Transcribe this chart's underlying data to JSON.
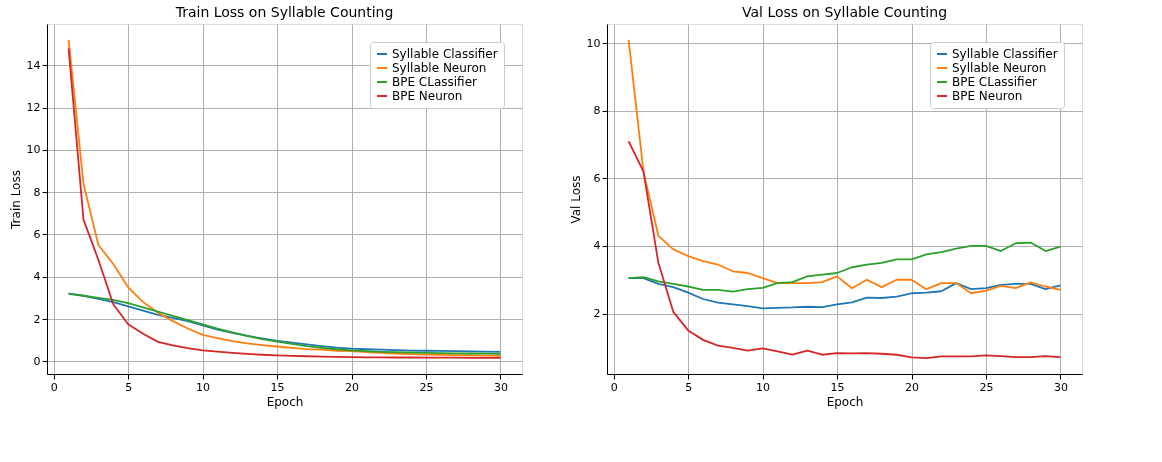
{
  "chart_data": [
    {
      "type": "line",
      "title": "Train Loss on Syllable Counting",
      "xlabel": "Epoch",
      "ylabel": "Train Loss",
      "grid": true,
      "legend": "top right",
      "marker": "none",
      "line_style": "solid",
      "x": [
        1,
        2,
        3,
        4,
        5,
        6,
        7,
        8,
        9,
        10,
        11,
        12,
        13,
        14,
        15,
        16,
        17,
        18,
        19,
        20,
        21,
        22,
        23,
        24,
        25,
        26,
        27,
        28,
        29,
        30
      ],
      "xlim": [
        -0.45,
        31.45
      ],
      "xticks": [
        0,
        5,
        10,
        15,
        20,
        25,
        30
      ],
      "ylim": [
        -0.6,
        15.95
      ],
      "yticks": [
        0,
        2,
        4,
        6,
        8,
        10,
        12,
        14
      ],
      "series": [
        {
          "name": "Syllable Classifier",
          "color": "#1f77b4",
          "values": [
            3.2,
            3.1,
            2.95,
            2.8,
            2.6,
            2.4,
            2.2,
            2.05,
            1.9,
            1.7,
            1.5,
            1.35,
            1.2,
            1.08,
            0.97,
            0.88,
            0.8,
            0.72,
            0.65,
            0.6,
            0.57,
            0.55,
            0.53,
            0.51,
            0.5,
            0.49,
            0.48,
            0.47,
            0.46,
            0.45
          ]
        },
        {
          "name": "Syllable Neuron",
          "color": "#ff7f0e",
          "values": [
            15.2,
            8.4,
            5.5,
            4.6,
            3.5,
            2.8,
            2.3,
            1.9,
            1.55,
            1.25,
            1.1,
            0.95,
            0.85,
            0.77,
            0.7,
            0.64,
            0.58,
            0.55,
            0.5,
            0.48,
            0.44,
            0.4,
            0.37,
            0.34,
            0.32,
            0.3,
            0.29,
            0.28,
            0.27,
            0.26
          ]
        },
        {
          "name": "BPE CLassifier",
          "color": "#2ca02c",
          "values": [
            3.2,
            3.1,
            3.0,
            2.9,
            2.75,
            2.55,
            2.35,
            2.15,
            1.95,
            1.75,
            1.55,
            1.37,
            1.2,
            1.05,
            0.93,
            0.82,
            0.72,
            0.64,
            0.57,
            0.52,
            0.48,
            0.45,
            0.43,
            0.41,
            0.4,
            0.39,
            0.38,
            0.37,
            0.36,
            0.35
          ]
        },
        {
          "name": "BPE Neuron",
          "color": "#d62728",
          "values": [
            14.8,
            6.7,
            4.8,
            2.7,
            1.75,
            1.3,
            0.92,
            0.75,
            0.62,
            0.52,
            0.46,
            0.4,
            0.35,
            0.31,
            0.28,
            0.26,
            0.24,
            0.22,
            0.21,
            0.2,
            0.19,
            0.19,
            0.18,
            0.18,
            0.17,
            0.17,
            0.17,
            0.16,
            0.16,
            0.16
          ]
        }
      ]
    },
    {
      "type": "line",
      "title": "Val Loss on Syllable Counting",
      "xlabel": "Epoch",
      "ylabel": "Val Loss",
      "grid": true,
      "legend": "top right",
      "marker": "none",
      "line_style": "solid",
      "x": [
        1,
        2,
        3,
        4,
        5,
        6,
        7,
        8,
        9,
        10,
        11,
        12,
        13,
        14,
        15,
        16,
        17,
        18,
        19,
        20,
        21,
        22,
        23,
        24,
        25,
        26,
        27,
        28,
        29,
        30
      ],
      "xlim": [
        -0.45,
        31.45
      ],
      "xticks": [
        0,
        5,
        10,
        15,
        20,
        25,
        30
      ],
      "ylim": [
        0.21,
        10.57
      ],
      "yticks": [
        2,
        4,
        6,
        8,
        10
      ],
      "series": [
        {
          "name": "Syllable Classifier",
          "color": "#1f77b4",
          "values": [
            3.05,
            3.05,
            2.88,
            2.78,
            2.62,
            2.43,
            2.32,
            2.27,
            2.22,
            2.15,
            2.17,
            2.18,
            2.2,
            2.19,
            2.27,
            2.33,
            2.47,
            2.46,
            2.5,
            2.6,
            2.62,
            2.66,
            2.9,
            2.72,
            2.75,
            2.85,
            2.88,
            2.88,
            2.72,
            2.83
          ]
        },
        {
          "name": "Syllable Neuron",
          "color": "#ff7f0e",
          "values": [
            10.1,
            6.2,
            4.3,
            3.9,
            3.7,
            3.55,
            3.45,
            3.25,
            3.2,
            3.05,
            2.9,
            2.9,
            2.9,
            2.93,
            3.1,
            2.75,
            3.0,
            2.78,
            3.0,
            3.0,
            2.72,
            2.9,
            2.9,
            2.6,
            2.68,
            2.82,
            2.75,
            2.92,
            2.8,
            2.7
          ]
        },
        {
          "name": "BPE CLassifier",
          "color": "#2ca02c",
          "values": [
            3.05,
            3.08,
            2.95,
            2.88,
            2.8,
            2.7,
            2.7,
            2.65,
            2.72,
            2.76,
            2.9,
            2.93,
            3.1,
            3.15,
            3.2,
            3.37,
            3.45,
            3.5,
            3.6,
            3.6,
            3.75,
            3.82,
            3.92,
            4.0,
            4.0,
            3.85,
            4.08,
            4.1,
            3.85,
            3.98
          ]
        },
        {
          "name": "BPE Neuron",
          "color": "#d62728",
          "values": [
            7.1,
            6.2,
            3.5,
            2.05,
            1.5,
            1.22,
            1.05,
            0.98,
            0.9,
            0.97,
            0.88,
            0.78,
            0.9,
            0.78,
            0.83,
            0.82,
            0.83,
            0.81,
            0.78,
            0.7,
            0.68,
            0.73,
            0.73,
            0.73,
            0.76,
            0.74,
            0.71,
            0.71,
            0.74,
            0.71
          ]
        }
      ]
    }
  ]
}
